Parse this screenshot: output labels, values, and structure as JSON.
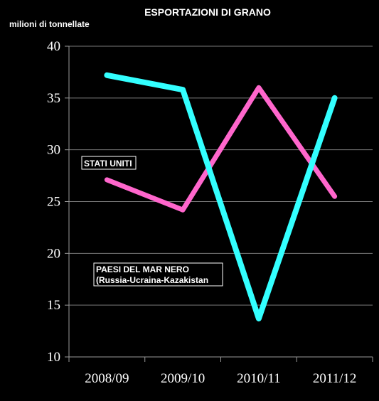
{
  "chart_data": {
    "type": "line",
    "title": "ESPORTAZIONI DI GRANO",
    "ylabel": "milioni di tonnellate",
    "xlabel": "",
    "categories": [
      "2008/09",
      "2009/10",
      "2010/11",
      "2011/12"
    ],
    "ylim": [
      10,
      40
    ],
    "yticks": [
      10,
      15,
      20,
      25,
      30,
      35,
      40
    ],
    "grid": true,
    "series": [
      {
        "name": "STATI UNITI",
        "values": [
          27.1,
          24.2,
          36.0,
          25.5
        ],
        "color": "#ff66cc"
      },
      {
        "name": "PAESI DEL MAR NERO",
        "subtitle": "(Russia-Ucraina-Kazakistan",
        "values": [
          37.2,
          35.8,
          13.7,
          35.0
        ],
        "color": "#33ffff"
      }
    ]
  }
}
